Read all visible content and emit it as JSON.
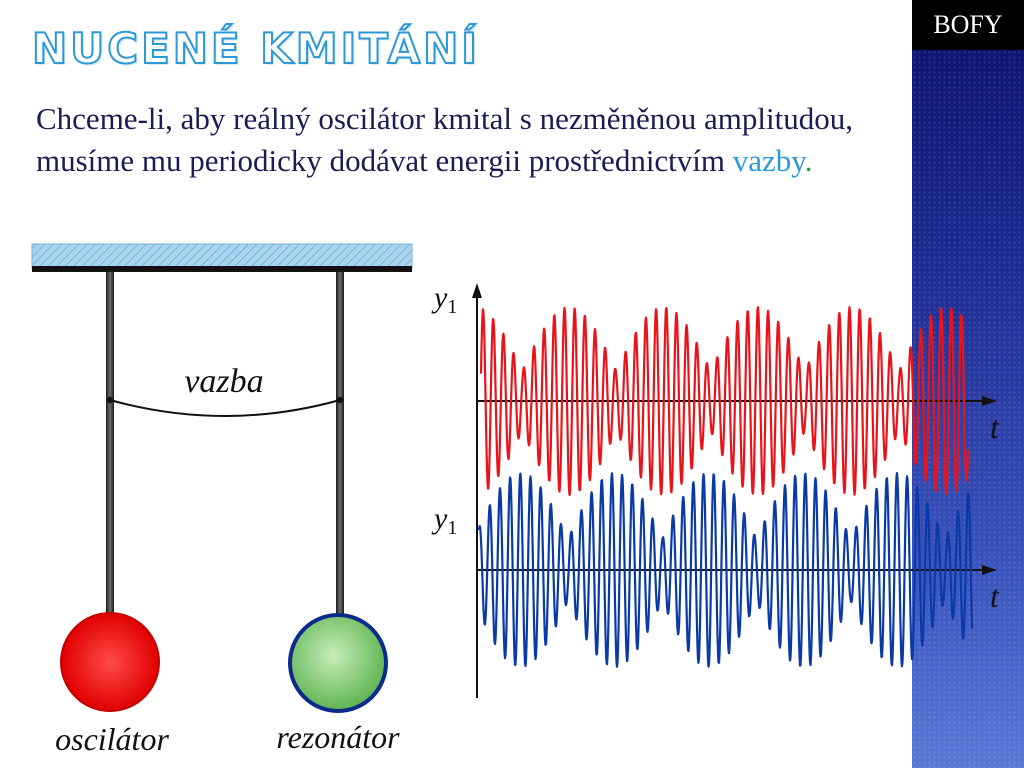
{
  "badge": "BOFY",
  "title": "NUCENÉ KMITÁNÍ",
  "paragraph": {
    "text": "Chceme-li, aby reálný oscilátor kmital s nezměněnou amplitudou, musíme mu periodicky dodávat energii prostřednictvím ",
    "highlight": "vazby",
    "end": "."
  },
  "diagram": {
    "coupling_label": "vazba",
    "oscillator_label": "oscilátor",
    "resonator_label": "rezonátor",
    "graph_top": {
      "y_label": "y",
      "y_subscript": "1",
      "x_label": "t"
    },
    "graph_bottom": {
      "y_label": "y",
      "y_subscript": "1",
      "x_label": "t"
    }
  },
  "colors": {
    "title_stroke": "#2c98d6",
    "text": "#1c1c54",
    "highlight": "#2a9ad9",
    "oscillator": "#e60000",
    "resonator": "#8bd07b",
    "resonator_border": "#0a2a8c",
    "trace_top": "#e8141a",
    "trace_bottom": "#0a3aa8"
  }
}
